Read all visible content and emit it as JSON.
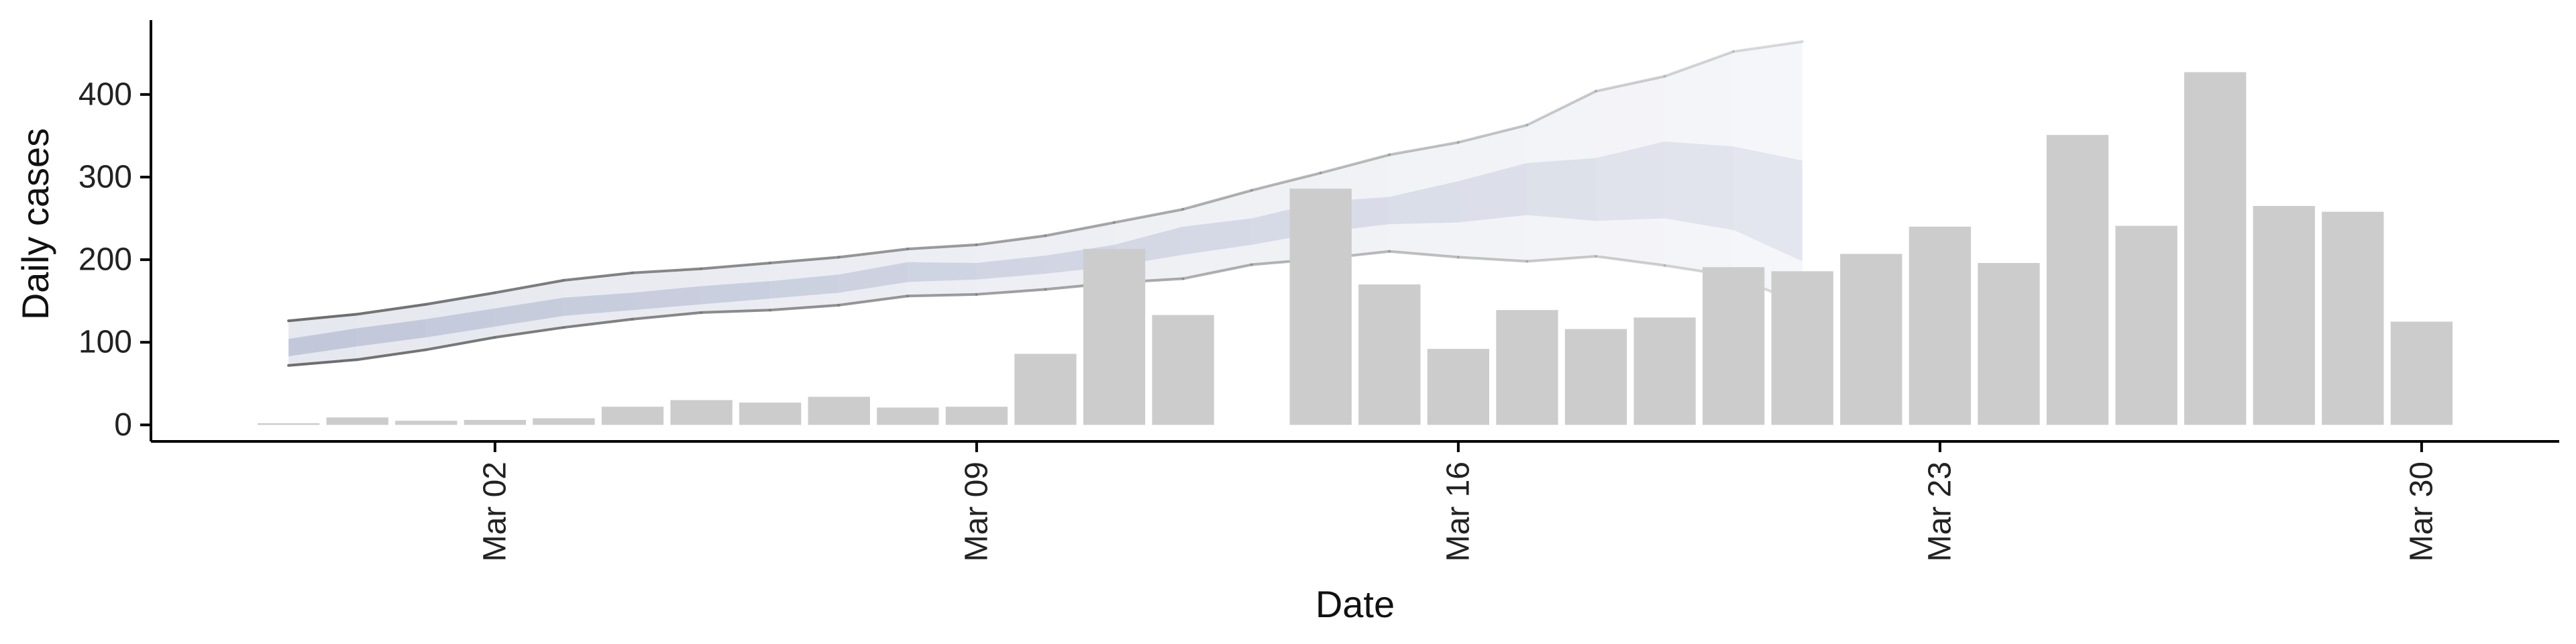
{
  "chart_data": {
    "type": "bar",
    "xlabel": "Date",
    "ylabel": "Daily cases",
    "x_domain": [
      "2020-02-26",
      "2020-04-01"
    ],
    "ylim": [
      -20,
      490
    ],
    "yticks": [
      0,
      100,
      200,
      300,
      400
    ],
    "ytick_labels": [
      "0",
      "100",
      "200",
      "300",
      "400"
    ],
    "xticks": [
      "2020-03-02",
      "2020-03-09",
      "2020-03-16",
      "2020-03-23",
      "2020-03-30"
    ],
    "xtick_labels": [
      "Mar 02",
      "Mar 09",
      "Mar 16",
      "Mar 23",
      "Mar 30"
    ],
    "grid": false,
    "colors": {
      "bars": "#cccccc",
      "axis": "#000000",
      "outer_band_fill": "#e6e8ef",
      "inner_band_fill": "#aab2cc",
      "band_edge": "#6e6e6e"
    },
    "bars": [
      {
        "date": "2020-02-28",
        "value": 2
      },
      {
        "date": "2020-02-29",
        "value": 9
      },
      {
        "date": "2020-03-01",
        "value": 5
      },
      {
        "date": "2020-03-02",
        "value": 6
      },
      {
        "date": "2020-03-03",
        "value": 8
      },
      {
        "date": "2020-03-04",
        "value": 22
      },
      {
        "date": "2020-03-05",
        "value": 30
      },
      {
        "date": "2020-03-06",
        "value": 27
      },
      {
        "date": "2020-03-07",
        "value": 34
      },
      {
        "date": "2020-03-08",
        "value": 21
      },
      {
        "date": "2020-03-09",
        "value": 22
      },
      {
        "date": "2020-03-10",
        "value": 86
      },
      {
        "date": "2020-03-11",
        "value": 213
      },
      {
        "date": "2020-03-12",
        "value": 133
      },
      {
        "date": "2020-03-13",
        "value": 0
      },
      {
        "date": "2020-03-14",
        "value": 286
      },
      {
        "date": "2020-03-15",
        "value": 170
      },
      {
        "date": "2020-03-16",
        "value": 92
      },
      {
        "date": "2020-03-17",
        "value": 139
      },
      {
        "date": "2020-03-18",
        "value": 116
      },
      {
        "date": "2020-03-19",
        "value": 130
      },
      {
        "date": "2020-03-20",
        "value": 191
      },
      {
        "date": "2020-03-21",
        "value": 186
      },
      {
        "date": "2020-03-22",
        "value": 207
      },
      {
        "date": "2020-03-23",
        "value": 240
      },
      {
        "date": "2020-03-24",
        "value": 196
      },
      {
        "date": "2020-03-25",
        "value": 351
      },
      {
        "date": "2020-03-26",
        "value": 241
      },
      {
        "date": "2020-03-27",
        "value": 427
      },
      {
        "date": "2020-03-28",
        "value": 265
      },
      {
        "date": "2020-03-29",
        "value": 258
      },
      {
        "date": "2020-03-30",
        "value": 125
      }
    ],
    "bands": [
      {
        "date": "2020-02-28",
        "outer_low": 72,
        "inner_low": 83,
        "inner_high": 104,
        "outer_high": 126
      },
      {
        "date": "2020-02-29",
        "outer_low": 79,
        "inner_low": 95,
        "inner_high": 117,
        "outer_high": 134
      },
      {
        "date": "2020-03-01",
        "outer_low": 91,
        "inner_low": 106,
        "inner_high": 128,
        "outer_high": 146
      },
      {
        "date": "2020-03-02",
        "outer_low": 106,
        "inner_low": 119,
        "inner_high": 141,
        "outer_high": 160
      },
      {
        "date": "2020-03-03",
        "outer_low": 118,
        "inner_low": 132,
        "inner_high": 154,
        "outer_high": 175
      },
      {
        "date": "2020-03-04",
        "outer_low": 128,
        "inner_low": 139,
        "inner_high": 160,
        "outer_high": 184
      },
      {
        "date": "2020-03-05",
        "outer_low": 136,
        "inner_low": 146,
        "inner_high": 168,
        "outer_high": 189
      },
      {
        "date": "2020-03-06",
        "outer_low": 139,
        "inner_low": 153,
        "inner_high": 174,
        "outer_high": 196
      },
      {
        "date": "2020-03-07",
        "outer_low": 145,
        "inner_low": 160,
        "inner_high": 182,
        "outer_high": 203
      },
      {
        "date": "2020-03-08",
        "outer_low": 156,
        "inner_low": 173,
        "inner_high": 197,
        "outer_high": 213
      },
      {
        "date": "2020-03-09",
        "outer_low": 158,
        "inner_low": 176,
        "inner_high": 196,
        "outer_high": 218
      },
      {
        "date": "2020-03-10",
        "outer_low": 164,
        "inner_low": 183,
        "inner_high": 205,
        "outer_high": 229
      },
      {
        "date": "2020-03-11",
        "outer_low": 172,
        "inner_low": 192,
        "inner_high": 218,
        "outer_high": 245
      },
      {
        "date": "2020-03-12",
        "outer_low": 177,
        "inner_low": 206,
        "inner_high": 240,
        "outer_high": 261
      },
      {
        "date": "2020-03-13",
        "outer_low": 194,
        "inner_low": 218,
        "inner_high": 250,
        "outer_high": 284
      },
      {
        "date": "2020-03-14",
        "outer_low": 201,
        "inner_low": 233,
        "inner_high": 270,
        "outer_high": 305
      },
      {
        "date": "2020-03-15",
        "outer_low": 210,
        "inner_low": 243,
        "inner_high": 276,
        "outer_high": 327
      },
      {
        "date": "2020-03-16",
        "outer_low": 203,
        "inner_low": 245,
        "inner_high": 295,
        "outer_high": 342
      },
      {
        "date": "2020-03-17",
        "outer_low": 198,
        "inner_low": 254,
        "inner_high": 317,
        "outer_high": 363
      },
      {
        "date": "2020-03-18",
        "outer_low": 204,
        "inner_low": 247,
        "inner_high": 323,
        "outer_high": 404
      },
      {
        "date": "2020-03-19",
        "outer_low": 193,
        "inner_low": 250,
        "inner_high": 343,
        "outer_high": 422
      },
      {
        "date": "2020-03-20",
        "outer_low": 180,
        "inner_low": 236,
        "inner_high": 337,
        "outer_high": 452
      },
      {
        "date": "2020-03-21",
        "outer_low": 146,
        "inner_low": 198,
        "inner_high": 320,
        "outer_high": 464
      }
    ]
  }
}
